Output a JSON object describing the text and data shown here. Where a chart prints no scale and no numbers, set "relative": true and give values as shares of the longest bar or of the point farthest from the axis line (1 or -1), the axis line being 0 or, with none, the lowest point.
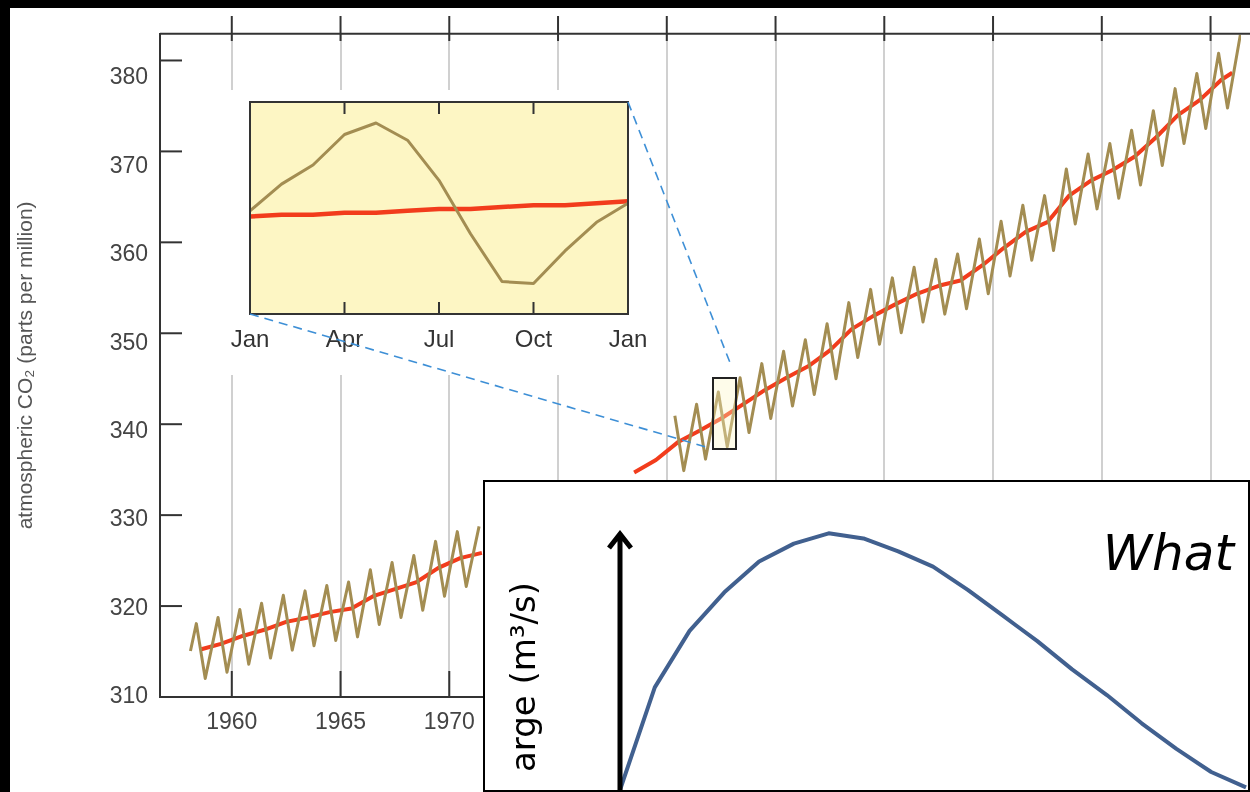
{
  "chart_data": [
    {
      "type": "line",
      "ylabel": "atmospheric CO₂ (parts per million)",
      "xlim": [
        1956.7,
        2006.4
      ],
      "ylim": [
        310,
        385
      ],
      "xticks": [
        1960,
        1965,
        1970,
        {
          "value": 1975,
          "label": null
        },
        {
          "value": 1980,
          "label": null
        },
        {
          "value": 1985,
          "label": null
        },
        {
          "value": 1990,
          "label": null
        },
        {
          "value": 1995,
          "label": null
        },
        {
          "value": 2000,
          "label": null
        },
        {
          "value": 2005,
          "label": null
        }
      ],
      "yticks": [
        310,
        320,
        330,
        340,
        350,
        360,
        370,
        380
      ],
      "grid": "x",
      "legend": false,
      "series": [
        {
          "color": "#a38d52",
          "x": [
            1958.1,
            1958.37,
            1958.78,
            1959.37,
            1959.78,
            1960.37,
            1960.78,
            1961.37,
            1961.78,
            1962.37,
            1962.78,
            1963.37,
            1963.78,
            1964.37,
            1964.78,
            1965.37,
            1965.78,
            1966.37,
            1966.78,
            1967.37,
            1967.78,
            1968.37,
            1968.78,
            1969.37,
            1969.78,
            1970.37,
            1970.78,
            1971.37,
            1971.78,
            1972.37,
            1972.78,
            1973.37,
            1973.78,
            1974.37,
            1974.78,
            1975.37,
            1975.78,
            1976.37,
            1976.78,
            1977.37,
            1977.78,
            1978.37,
            1978.78,
            1979.37,
            1979.78,
            1980.37,
            1980.78,
            1981.37,
            1981.78,
            1982.37,
            1982.78,
            1983.37,
            1983.78,
            1984.37,
            1984.78,
            1985.37,
            1985.78,
            1986.37,
            1986.78,
            1987.37,
            1987.78,
            1988.37,
            1988.78,
            1989.37,
            1989.78,
            1990.37,
            1990.78,
            1991.37,
            1991.78,
            1992.37,
            1992.78,
            1993.37,
            1993.78,
            1994.37,
            1994.78,
            1995.37,
            1995.78,
            1996.37,
            1996.78,
            1997.37,
            1997.78,
            1998.37,
            1998.78,
            1999.37,
            1999.78,
            2000.37,
            2000.78,
            2001.37,
            2001.78,
            2002.37,
            2002.78,
            2003.37,
            2003.78,
            2004.37,
            2004.78,
            2005.37,
            2005.78,
            2006.37
          ],
          "values": [
            315.2,
            318.3,
            312.1,
            319.0,
            312.8,
            319.9,
            313.7,
            320.6,
            314.4,
            321.5,
            315.3,
            322.0,
            315.8,
            322.6,
            316.4,
            323.0,
            316.8,
            324.4,
            318.2,
            325.2,
            319.0,
            326.0,
            319.8,
            327.6,
            321.4,
            328.7,
            322.5,
            329.3,
            null,
            null,
            null,
            null,
            null,
            null,
            null,
            null,
            null,
            null,
            null,
            null,
            null,
            null,
            null,
            null,
            null,
            341.8,
            335.6,
            343.1,
            336.9,
            344.5,
            338.3,
            346.1,
            339.9,
            347.7,
            341.5,
            349.1,
            342.9,
            350.4,
            344.2,
            352.2,
            346.0,
            354.6,
            348.4,
            356.1,
            349.9,
            357.4,
            351.2,
            358.6,
            352.4,
            359.5,
            353.3,
            360.1,
            353.9,
            361.8,
            355.6,
            363.8,
            357.6,
            365.6,
            359.4,
            366.7,
            360.5,
            369.7,
            363.5,
            371.4,
            365.2,
            372.6,
            366.4,
            374.1,
            367.9,
            376.3,
            370.1,
            378.8,
            372.6,
            380.5,
            374.3,
            382.8,
            376.6,
            384.9
          ]
        },
        {
          "color": "#f23c1c",
          "x": [
            1958.6,
            1959.5,
            1960.5,
            1961.5,
            1962.5,
            1963.5,
            1964.5,
            1965.5,
            1966.5,
            1967.5,
            1968.5,
            1969.5,
            1970.5,
            1971.5,
            1972.5,
            1973.5,
            1974.5,
            1975.5,
            1976.5,
            1977.5,
            1978.5,
            1979.5,
            1980.5,
            1981.5,
            1982.5,
            1983.5,
            1984.5,
            1985.5,
            1986.5,
            1987.5,
            1988.5,
            1989.5,
            1990.5,
            1991.5,
            1992.5,
            1993.5,
            1994.5,
            1995.5,
            1996.5,
            1997.5,
            1998.5,
            1999.5,
            2000.5,
            2001.5,
            2002.5,
            2003.5,
            2004.5,
            2005.5,
            2006.0
          ],
          "values": [
            315.4,
            316.0,
            316.9,
            317.6,
            318.5,
            319.0,
            319.6,
            320.0,
            321.4,
            322.2,
            323.0,
            324.6,
            325.7,
            326.3,
            null,
            null,
            null,
            null,
            null,
            null,
            335.4,
            336.8,
            338.8,
            340.1,
            341.5,
            343.1,
            344.7,
            346.1,
            347.4,
            349.2,
            351.6,
            353.1,
            354.4,
            355.6,
            356.5,
            357.1,
            358.8,
            360.8,
            362.6,
            363.7,
            366.7,
            368.4,
            369.6,
            371.1,
            373.3,
            375.8,
            377.5,
            379.8,
            380.6
          ]
        }
      ]
    },
    {
      "type": "line",
      "relative": true,
      "legend": false,
      "categories": [
        "Jan",
        null,
        null,
        "Apr",
        null,
        null,
        "Jul",
        null,
        null,
        "Oct",
        null,
        null,
        "Jan"
      ],
      "series": [
        {
          "color": "#a38d52",
          "values": [
            0.54,
            0.68,
            0.78,
            0.94,
            1,
            0.91,
            0.7,
            0.42,
            0.17,
            0.16,
            0.33,
            0.48,
            0.58
          ]
        },
        {
          "color": "#f23c1c",
          "values": [
            0.51,
            0.52,
            0.52,
            0.53,
            0.53,
            0.54,
            0.55,
            0.55,
            0.56,
            0.57,
            0.57,
            0.58,
            0.59
          ]
        }
      ]
    },
    {
      "type": "line",
      "relative": true,
      "title": "What",
      "ylabel": "arge (m³/s)",
      "legend": false,
      "categories": [
        null,
        null,
        null,
        null,
        null,
        null,
        null,
        null,
        null,
        null,
        null,
        null,
        null,
        null,
        null,
        null,
        null,
        null,
        null
      ],
      "series": [
        {
          "color": "#41608f",
          "values": [
            0,
            0.4,
            0.62,
            0.77,
            0.89,
            0.96,
            1,
            0.98,
            0.93,
            0.87,
            0.78,
            0.68,
            0.58,
            0.47,
            0.37,
            0.26,
            0.16,
            0.07,
            0.01
          ]
        }
      ]
    }
  ]
}
